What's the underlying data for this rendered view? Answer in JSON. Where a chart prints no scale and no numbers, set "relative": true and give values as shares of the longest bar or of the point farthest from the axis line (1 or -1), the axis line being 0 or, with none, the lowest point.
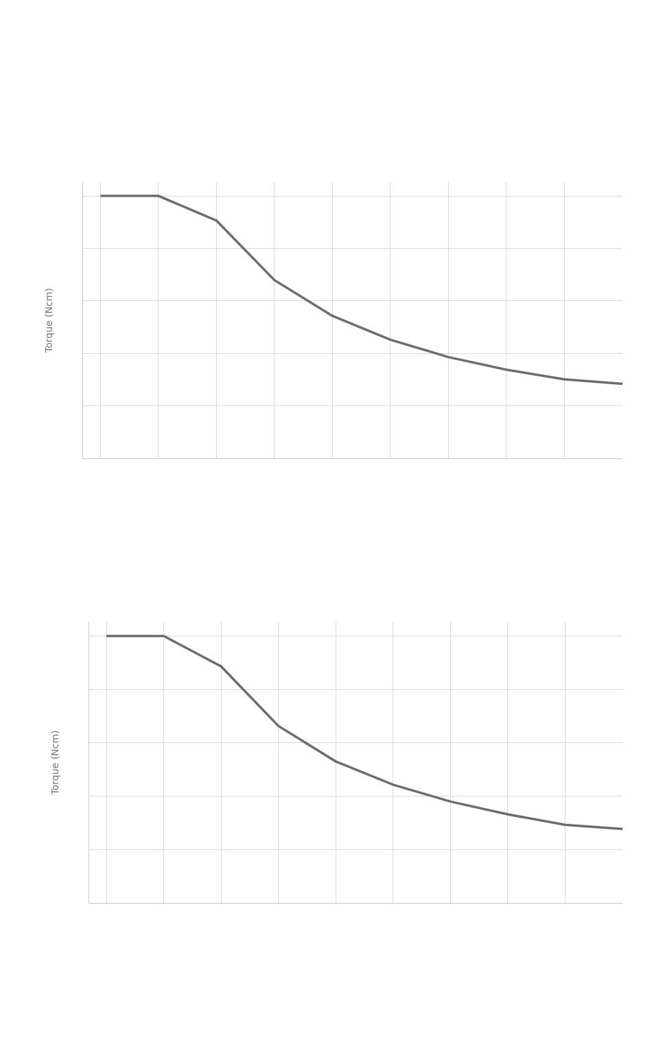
{
  "chart_data": [
    {
      "type": "line",
      "ylabel": "Torque (Ncm)",
      "relative": true,
      "color": "#6d6d6d",
      "grid": true,
      "marker": "none",
      "line_style": "solid",
      "categories": [
        null,
        null,
        null,
        null,
        null,
        null,
        null,
        null,
        null,
        null
      ],
      "values": [
        1,
        1,
        0.906,
        0.679,
        0.543,
        0.452,
        0.386,
        0.338,
        0.301,
        0.284
      ]
    },
    {
      "type": "line",
      "ylabel": "Torque (Ncm)",
      "relative": true,
      "color": "#6d6d6d",
      "grid": true,
      "marker": "none",
      "line_style": "solid",
      "categories": [
        null,
        null,
        null,
        null,
        null,
        null,
        null,
        null,
        null,
        null
      ],
      "values": [
        1,
        1,
        0.886,
        0.663,
        0.53,
        0.443,
        0.38,
        0.332,
        0.293,
        0.277
      ]
    }
  ]
}
